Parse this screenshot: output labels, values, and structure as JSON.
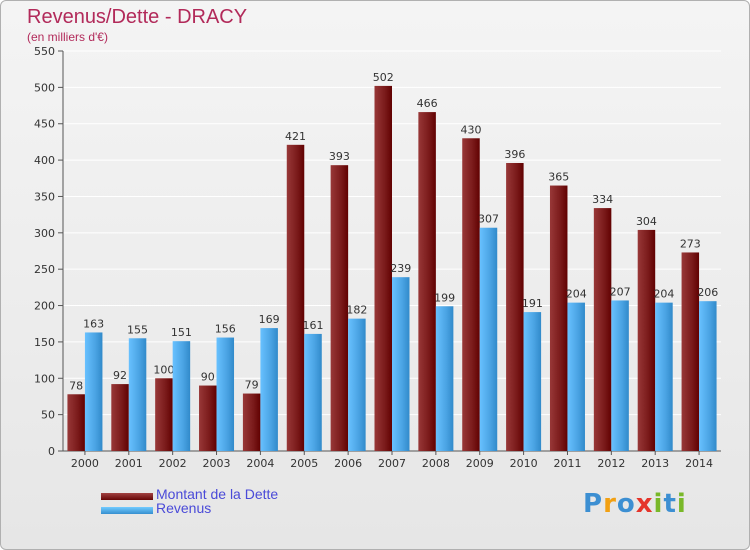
{
  "header": {
    "title": "Revenus/Dette - DRACY",
    "subtitle": "(en milliers d'€)"
  },
  "legend": {
    "items": [
      {
        "label": "Montant de la Dette",
        "color": "#7a1a1a"
      },
      {
        "label": "Revenus",
        "color": "#4aa3e3"
      }
    ]
  },
  "logo": {
    "letters": [
      {
        "ch": "P",
        "color": "#3c8fd2"
      },
      {
        "ch": "r",
        "color": "#f2a012"
      },
      {
        "ch": "o",
        "color": "#3c8fd2"
      },
      {
        "ch": "x",
        "color": "#e5342a"
      },
      {
        "ch": "i",
        "color": "#79b829"
      },
      {
        "ch": "t",
        "color": "#3c8fd2"
      },
      {
        "ch": "i",
        "color": "#79b829"
      }
    ]
  },
  "chart_data": {
    "type": "bar",
    "categories": [
      "2000",
      "2001",
      "2002",
      "2003",
      "2004",
      "2005",
      "2006",
      "2007",
      "2008",
      "2009",
      "2010",
      "2011",
      "2012",
      "2013",
      "2014"
    ],
    "series": [
      {
        "name": "Montant de la Dette",
        "color": "#7a1a1a",
        "values": [
          78,
          92,
          100,
          90,
          79,
          421,
          393,
          502,
          466,
          430,
          396,
          365,
          334,
          304,
          273
        ]
      },
      {
        "name": "Revenus",
        "color": "#4aa3e3",
        "values": [
          163,
          155,
          151,
          156,
          169,
          161,
          182,
          239,
          199,
          307,
          191,
          204,
          207,
          204,
          206
        ]
      }
    ],
    "ylim": [
      0,
      550
    ],
    "yticks": [
      0,
      50,
      100,
      150,
      200,
      250,
      300,
      350,
      400,
      450,
      500,
      550
    ],
    "grid": true,
    "legend_position": "bottom-left"
  }
}
